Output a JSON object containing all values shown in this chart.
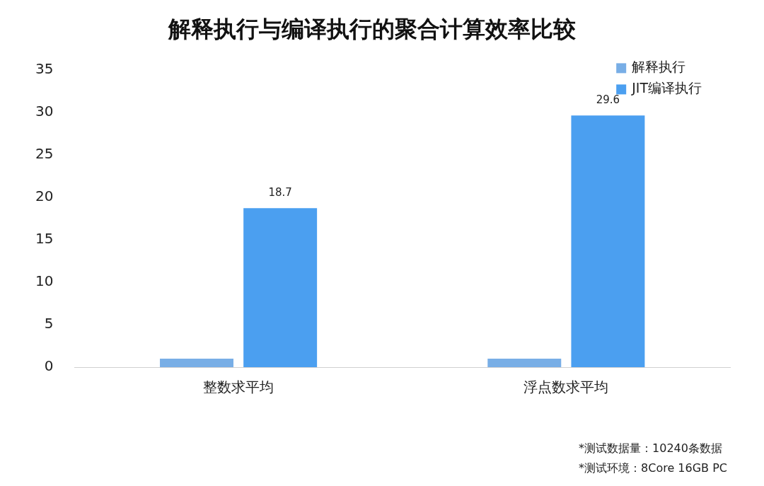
{
  "chart_data": {
    "type": "bar",
    "title": "解释执行与编译执行的聚合计算效率比较",
    "categories": [
      "整数求平均",
      "浮点数求平均"
    ],
    "series": [
      {
        "name": "解释执行",
        "color": "#78aee6",
        "values": [
          1,
          1
        ]
      },
      {
        "name": "JIT编译执行",
        "color": "#4b9ff0",
        "values": [
          18.7,
          29.6
        ],
        "value_labels": [
          "18.7",
          "29.6"
        ]
      }
    ],
    "ylim": [
      0,
      35
    ],
    "yticks": [
      0,
      5,
      10,
      15,
      20,
      25,
      30,
      35
    ],
    "grid": false,
    "legend": "top right",
    "annotations": [
      "*测试数据量：10240条数据",
      "*测试环境：8Core 16GB PC"
    ]
  }
}
